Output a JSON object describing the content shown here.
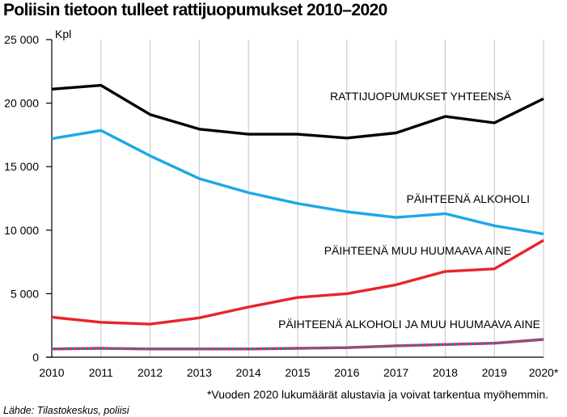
{
  "chart_data": {
    "type": "line",
    "title": "Poliisin tietoon tulleet rattijuopumukset 2010–2020",
    "unit_label": "Kpl",
    "x": [
      "2010",
      "2011",
      "2012",
      "2013",
      "2014",
      "2015",
      "2016",
      "2017",
      "2018",
      "2019",
      "2020*"
    ],
    "ylim": [
      0,
      25000
    ],
    "yticks": [
      0,
      5000,
      10000,
      15000,
      20000,
      25000
    ],
    "ytick_labels": [
      "0",
      "5 000",
      "10 000",
      "15 000",
      "20 000",
      "25 000"
    ],
    "grid": "vertical",
    "series": [
      {
        "name": "RATTIJUOPUMUKSET YHTEENSÄ",
        "color": "#000000",
        "values": [
          21100,
          21400,
          19100,
          17950,
          17550,
          17550,
          17250,
          17650,
          18950,
          18450,
          20350
        ]
      },
      {
        "name": "PÄIHTEENÄ ALKOHOLI",
        "color": "#1ea7e8",
        "values": [
          17200,
          17850,
          15850,
          14050,
          12950,
          12100,
          11450,
          11000,
          11300,
          10350,
          9700
        ]
      },
      {
        "name": "PÄIHTEENÄ MUU HUUMAAVA AINE",
        "color": "#e8252b",
        "values": [
          3150,
          2750,
          2600,
          3100,
          3950,
          4700,
          5000,
          5700,
          6750,
          6950,
          9200
        ]
      },
      {
        "name": "PÄIHTEENÄ ALKOHOLI JA MUU HUUMAAVA AINE",
        "color": "#e8252b",
        "dash_color": "#3a78c9",
        "style": "dashed",
        "values": [
          650,
          700,
          650,
          650,
          650,
          700,
          750,
          900,
          1000,
          1100,
          1400
        ]
      }
    ],
    "footnote": "*Vuoden 2020 lukumäärät alustavia ja voivat tarkentua myöhemmin.",
    "source": "Lähde: Tilastokeskus, poliisi"
  }
}
